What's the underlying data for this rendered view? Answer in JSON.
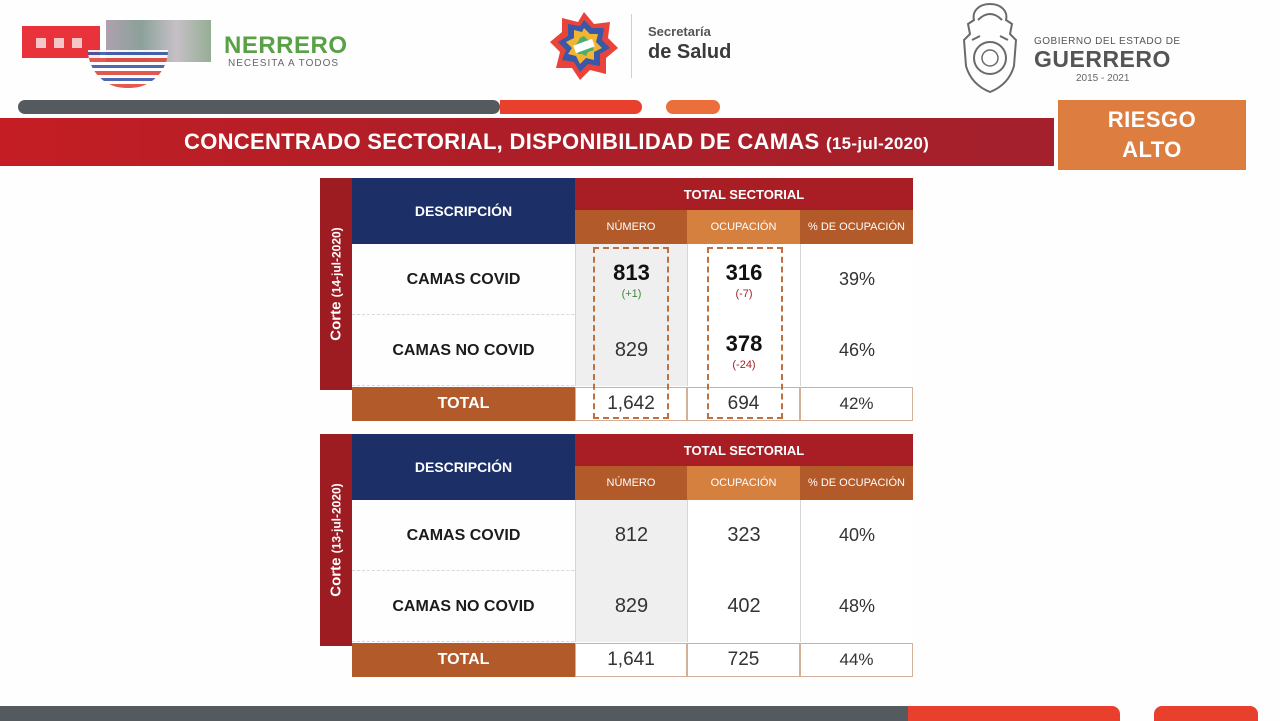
{
  "header": {
    "left_logo": {
      "name": "NERRERO",
      "tagline": "NECESITA A TODOS"
    },
    "center_logo": {
      "line1": "Secretaría",
      "line2": "de Salud"
    },
    "right_logo": {
      "line1": "GOBIERNO DEL ESTADO DE",
      "line2": "GUERRERO",
      "line3": "2015 - 2021"
    }
  },
  "title": {
    "main": "CONCENTRADO SECTORIAL, DISPONIBILIDAD DE CAMAS",
    "date": "(15-jul-2020)"
  },
  "risk": {
    "line1": "RIESGO",
    "line2": "ALTO"
  },
  "tables": [
    {
      "corte_label": "Corte",
      "corte_date": "(14-jul-2020)",
      "desc_header": "DESCRIPCIÓN",
      "total_header": "TOTAL SECTORIAL",
      "col_numero": "NÚMERO",
      "col_ocupacion": "OCUPACIÓN",
      "col_pct": "% DE OCUPACIÓN",
      "rows": [
        {
          "label": "CAMAS COVID",
          "numero": "813",
          "numero_delta": "(+1)",
          "ocupacion": "316",
          "ocupacion_delta": "(-7)",
          "pct": "39%"
        },
        {
          "label": "CAMAS NO COVID",
          "numero": "829",
          "numero_delta": "",
          "ocupacion": "378",
          "ocupacion_delta": "(-24)",
          "pct": "46%"
        }
      ],
      "total": {
        "label": "TOTAL",
        "numero": "1,642",
        "ocupacion": "694",
        "pct": "42%"
      }
    },
    {
      "corte_label": "Corte",
      "corte_date": "(13-jul-2020)",
      "desc_header": "DESCRIPCIÓN",
      "total_header": "TOTAL SECTORIAL",
      "col_numero": "NÚMERO",
      "col_ocupacion": "OCUPACIÓN",
      "col_pct": "% DE OCUPACIÓN",
      "rows": [
        {
          "label": "CAMAS COVID",
          "numero": "812",
          "ocupacion": "323",
          "pct": "40%"
        },
        {
          "label": "CAMAS NO COVID",
          "numero": "829",
          "ocupacion": "402",
          "pct": "48%"
        }
      ],
      "total": {
        "label": "TOTAL",
        "numero": "1,641",
        "ocupacion": "725",
        "pct": "44%"
      }
    }
  ],
  "colors": {
    "title_red": "#b01e27",
    "navy": "#1c2f66",
    "brown": "#b35a2a",
    "orange": "#d5803f",
    "risk_orange": "#dd7d3f",
    "delta_up": "#3b8a3b",
    "delta_down": "#a3202c"
  }
}
